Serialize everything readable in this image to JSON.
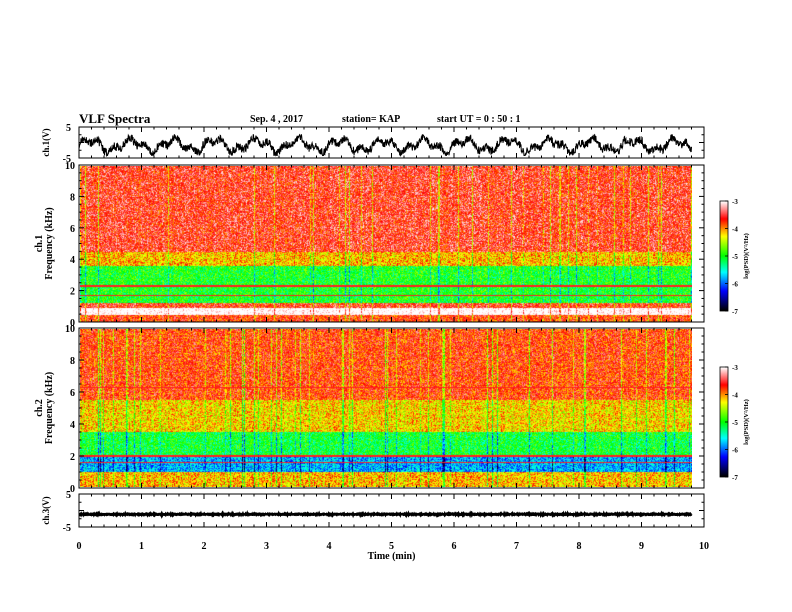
{
  "header": {
    "title": "VLF Spectra",
    "date": "Sep. 4 , 2017",
    "station": "station= KAP",
    "start": "start  UT =   0 : 50 : 1"
  },
  "chart_data": [
    {
      "type": "line",
      "name": "ch1-waveform",
      "ylabel": "ch.1(V)",
      "ylim": [
        -5,
        5
      ],
      "yticks": [
        "5",
        "-5"
      ],
      "xlim": [
        0,
        10
      ],
      "data_extent_min": 9.8,
      "trace_level_range": [
        -4.2,
        2.5
      ]
    },
    {
      "type": "heatmap",
      "name": "ch1-spectrogram",
      "ylabel_top": "ch.1",
      "ylabel": "Frequency  (kHz)",
      "ylim": [
        0,
        10
      ],
      "yticks": [
        "0",
        "2",
        "4",
        "6",
        "8",
        "10"
      ],
      "xlim": [
        0,
        9.8
      ],
      "colorbar": {
        "label": "log(PSD)(V²/Hz)",
        "range": [
          -7,
          -3
        ],
        "ticks": [
          "-3",
          "-4",
          "-5",
          "-6",
          "-7"
        ]
      }
    },
    {
      "type": "heatmap",
      "name": "ch2-spectrogram",
      "ylabel_top": "ch.2",
      "ylabel": "Frequency  (kHz)",
      "ylim": [
        0,
        10
      ],
      "yticks": [
        "0",
        "2",
        "4",
        "6",
        "8",
        "10"
      ],
      "xlim": [
        0,
        9.8
      ],
      "colorbar": {
        "label": "log(PSD)(V²/Hz)",
        "range": [
          -7,
          -3
        ],
        "ticks": [
          "-3",
          "-4",
          "-5",
          "-6",
          "-7"
        ]
      }
    },
    {
      "type": "line",
      "name": "ch3-waveform",
      "ylabel": "ch.3(V)",
      "ylim": [
        -5,
        5
      ],
      "yticks": [
        "5",
        "-5"
      ],
      "xlim": [
        0,
        10
      ],
      "data_extent_min": 9.8,
      "trace_level_range": [
        -1.3,
        -1.0
      ]
    }
  ],
  "xaxis": {
    "label": "Time  (min)",
    "ticks": [
      "0",
      "1",
      "2",
      "3",
      "4",
      "5",
      "6",
      "7",
      "8",
      "9",
      "10"
    ],
    "range": [
      0,
      10
    ]
  }
}
